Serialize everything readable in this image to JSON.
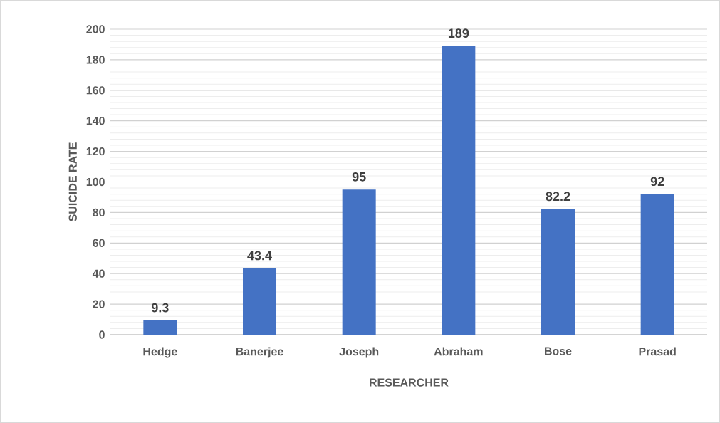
{
  "chart_data": {
    "type": "bar",
    "xlabel": "RESEARCHER",
    "ylabel": "SUICIDE RATE",
    "categories": [
      "Hedge",
      "Banerjee",
      "Joseph",
      "Abraham",
      "Bose",
      "Prasad"
    ],
    "values": [
      9.3,
      43.4,
      95,
      189,
      82.2,
      92
    ],
    "color": "#4472c4",
    "ylim": [
      0,
      200
    ],
    "yticks": [
      0,
      20,
      40,
      60,
      80,
      100,
      120,
      140,
      160,
      180,
      200
    ],
    "grid": "y",
    "data_labels": true
  }
}
